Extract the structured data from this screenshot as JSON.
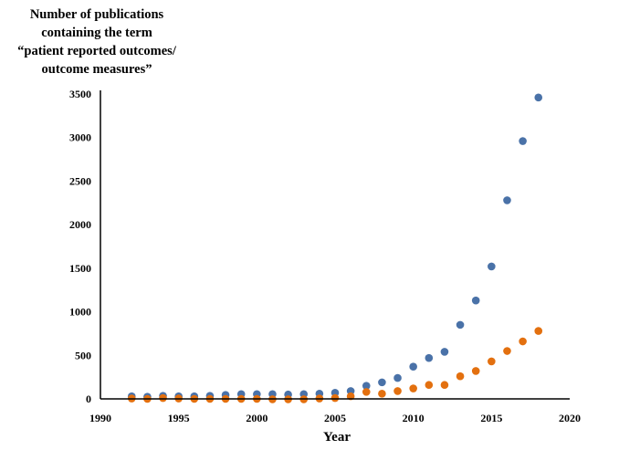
{
  "chart_data": {
    "type": "scatter",
    "title_lines": [
      "Number of publications",
      "containing the term",
      "“patient reported outcomes/",
      "outcome measures”"
    ],
    "xlabel": "Year",
    "ylabel": "",
    "xlim": [
      1990,
      2020
    ],
    "ylim": [
      0,
      3500
    ],
    "x_ticks": [
      1990,
      1995,
      2000,
      2005,
      2010,
      2015,
      2020
    ],
    "y_ticks": [
      0,
      500,
      1000,
      1500,
      2000,
      2500,
      3000,
      3500
    ],
    "grid": false,
    "legend": "none",
    "series": [
      {
        "color": "#4a72a8",
        "points": [
          [
            1992,
            30
          ],
          [
            1993,
            25
          ],
          [
            1994,
            35
          ],
          [
            1995,
            30
          ],
          [
            1996,
            30
          ],
          [
            1997,
            35
          ],
          [
            1998,
            45
          ],
          [
            1999,
            55
          ],
          [
            2000,
            55
          ],
          [
            2001,
            55
          ],
          [
            2002,
            50
          ],
          [
            2003,
            55
          ],
          [
            2004,
            60
          ],
          [
            2005,
            70
          ],
          [
            2006,
            90
          ],
          [
            2007,
            150
          ],
          [
            2008,
            190
          ],
          [
            2009,
            240
          ],
          [
            2010,
            370
          ],
          [
            2011,
            470
          ],
          [
            2012,
            540
          ],
          [
            2013,
            850
          ],
          [
            2014,
            1130
          ],
          [
            2015,
            1520
          ],
          [
            2016,
            2280
          ],
          [
            2017,
            2960
          ],
          [
            2018,
            3460
          ]
        ]
      },
      {
        "color": "#e3700f",
        "points": [
          [
            1992,
            5
          ],
          [
            1993,
            0
          ],
          [
            1994,
            10
          ],
          [
            1995,
            5
          ],
          [
            1996,
            0
          ],
          [
            1997,
            0
          ],
          [
            1998,
            0
          ],
          [
            1999,
            0
          ],
          [
            2000,
            0
          ],
          [
            2001,
            -5
          ],
          [
            2002,
            -5
          ],
          [
            2003,
            -5
          ],
          [
            2004,
            5
          ],
          [
            2005,
            10
          ],
          [
            2006,
            30
          ],
          [
            2007,
            80
          ],
          [
            2008,
            60
          ],
          [
            2009,
            90
          ],
          [
            2010,
            120
          ],
          [
            2011,
            160
          ],
          [
            2012,
            160
          ],
          [
            2013,
            260
          ],
          [
            2014,
            320
          ],
          [
            2015,
            430
          ],
          [
            2016,
            550
          ],
          [
            2017,
            660
          ],
          [
            2018,
            780
          ]
        ]
      }
    ]
  }
}
